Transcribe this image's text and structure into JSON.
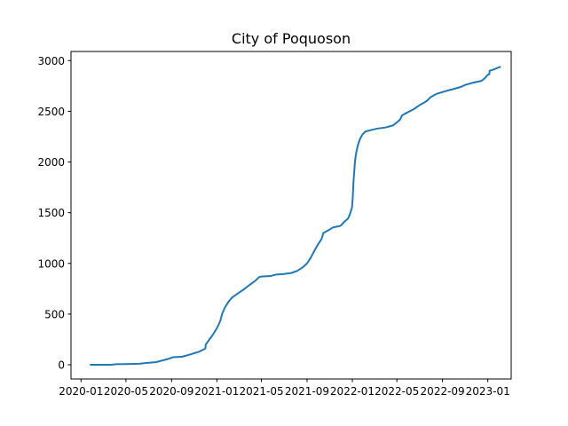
{
  "chart_data": {
    "type": "line",
    "title": "City of Poquoson",
    "xlabel": "",
    "ylabel": "",
    "x_axis": "date",
    "xlim": [
      "2019-12-05",
      "2023-03-05"
    ],
    "ylim": [
      -140,
      3090
    ],
    "grid": false,
    "legend": "none",
    "line_color": "#1f77b4",
    "axis_color": "#000000",
    "x_ticks": [
      {
        "label": "2020-01",
        "date": "2020-01-01"
      },
      {
        "label": "2020-05",
        "date": "2020-05-01"
      },
      {
        "label": "2020-09",
        "date": "2020-09-01"
      },
      {
        "label": "2021-01",
        "date": "2021-01-01"
      },
      {
        "label": "2021-05",
        "date": "2021-05-01"
      },
      {
        "label": "2021-09",
        "date": "2021-09-01"
      },
      {
        "label": "2022-01",
        "date": "2022-01-01"
      },
      {
        "label": "2022-05",
        "date": "2022-05-01"
      },
      {
        "label": "2022-09",
        "date": "2022-09-01"
      },
      {
        "label": "2023-01",
        "date": "2023-01-01"
      }
    ],
    "y_ticks": [
      {
        "label": "0",
        "value": 0
      },
      {
        "label": "500",
        "value": 500
      },
      {
        "label": "1000",
        "value": 1000
      },
      {
        "label": "1500",
        "value": 1500
      },
      {
        "label": "2000",
        "value": 2000
      },
      {
        "label": "2500",
        "value": 2500
      },
      {
        "label": "3000",
        "value": 3000
      }
    ],
    "series": [
      {
        "points": [
          [
            "2020-01-25",
            0
          ],
          [
            "2020-03-20",
            0
          ],
          [
            "2020-04-05",
            5
          ],
          [
            "2020-05-15",
            8
          ],
          [
            "2020-06-05",
            10
          ],
          [
            "2020-07-01",
            20
          ],
          [
            "2020-07-20",
            25
          ],
          [
            "2020-08-10",
            45
          ],
          [
            "2020-08-25",
            60
          ],
          [
            "2020-09-05",
            75
          ],
          [
            "2020-09-30",
            80
          ],
          [
            "2020-10-20",
            100
          ],
          [
            "2020-11-15",
            130
          ],
          [
            "2020-12-01",
            160
          ],
          [
            "2020-12-02",
            200
          ],
          [
            "2020-12-10",
            240
          ],
          [
            "2020-12-20",
            290
          ],
          [
            "2021-01-01",
            360
          ],
          [
            "2021-01-10",
            430
          ],
          [
            "2021-01-15",
            500
          ],
          [
            "2021-01-22",
            560
          ],
          [
            "2021-02-01",
            620
          ],
          [
            "2021-02-10",
            660
          ],
          [
            "2021-02-25",
            700
          ],
          [
            "2021-03-15",
            745
          ],
          [
            "2021-03-31",
            790
          ],
          [
            "2021-04-15",
            830
          ],
          [
            "2021-04-25",
            865
          ],
          [
            "2021-05-01",
            870
          ],
          [
            "2021-05-25",
            875
          ],
          [
            "2021-06-10",
            890
          ],
          [
            "2021-06-30",
            895
          ],
          [
            "2021-07-20",
            905
          ],
          [
            "2021-08-05",
            925
          ],
          [
            "2021-08-20",
            960
          ],
          [
            "2021-09-01",
            1000
          ],
          [
            "2021-09-10",
            1050
          ],
          [
            "2021-09-20",
            1120
          ],
          [
            "2021-10-01",
            1190
          ],
          [
            "2021-10-10",
            1240
          ],
          [
            "2021-10-15",
            1300
          ],
          [
            "2021-10-30",
            1330
          ],
          [
            "2021-11-10",
            1355
          ],
          [
            "2021-11-30",
            1370
          ],
          [
            "2021-12-10",
            1410
          ],
          [
            "2021-12-20",
            1440
          ],
          [
            "2021-12-25",
            1480
          ],
          [
            "2021-12-31",
            1550
          ],
          [
            "2022-01-02",
            1640
          ],
          [
            "2022-01-04",
            1800
          ],
          [
            "2022-01-06",
            1900
          ],
          [
            "2022-01-08",
            2000
          ],
          [
            "2022-01-10",
            2060
          ],
          [
            "2022-01-13",
            2120
          ],
          [
            "2022-01-17",
            2180
          ],
          [
            "2022-01-22",
            2230
          ],
          [
            "2022-01-28",
            2270
          ],
          [
            "2022-02-05",
            2300
          ],
          [
            "2022-02-20",
            2315
          ],
          [
            "2022-03-10",
            2330
          ],
          [
            "2022-03-31",
            2340
          ],
          [
            "2022-04-20",
            2360
          ],
          [
            "2022-05-01",
            2390
          ],
          [
            "2022-05-10",
            2420
          ],
          [
            "2022-05-15",
            2460
          ],
          [
            "2022-05-25",
            2480
          ],
          [
            "2022-06-15",
            2520
          ],
          [
            "2022-07-01",
            2560
          ],
          [
            "2022-07-20",
            2600
          ],
          [
            "2022-07-31",
            2640
          ],
          [
            "2022-08-15",
            2670
          ],
          [
            "2022-09-01",
            2690
          ],
          [
            "2022-09-15",
            2705
          ],
          [
            "2022-10-01",
            2720
          ],
          [
            "2022-10-20",
            2740
          ],
          [
            "2022-11-01",
            2760
          ],
          [
            "2022-11-20",
            2780
          ],
          [
            "2022-12-15",
            2800
          ],
          [
            "2022-12-25",
            2830
          ],
          [
            "2023-01-01",
            2860
          ],
          [
            "2023-01-05",
            2865
          ],
          [
            "2023-01-06",
            2900
          ],
          [
            "2023-01-15",
            2910
          ],
          [
            "2023-01-22",
            2920
          ],
          [
            "2023-01-28",
            2930
          ],
          [
            "2023-02-05",
            2940
          ]
        ]
      }
    ]
  }
}
